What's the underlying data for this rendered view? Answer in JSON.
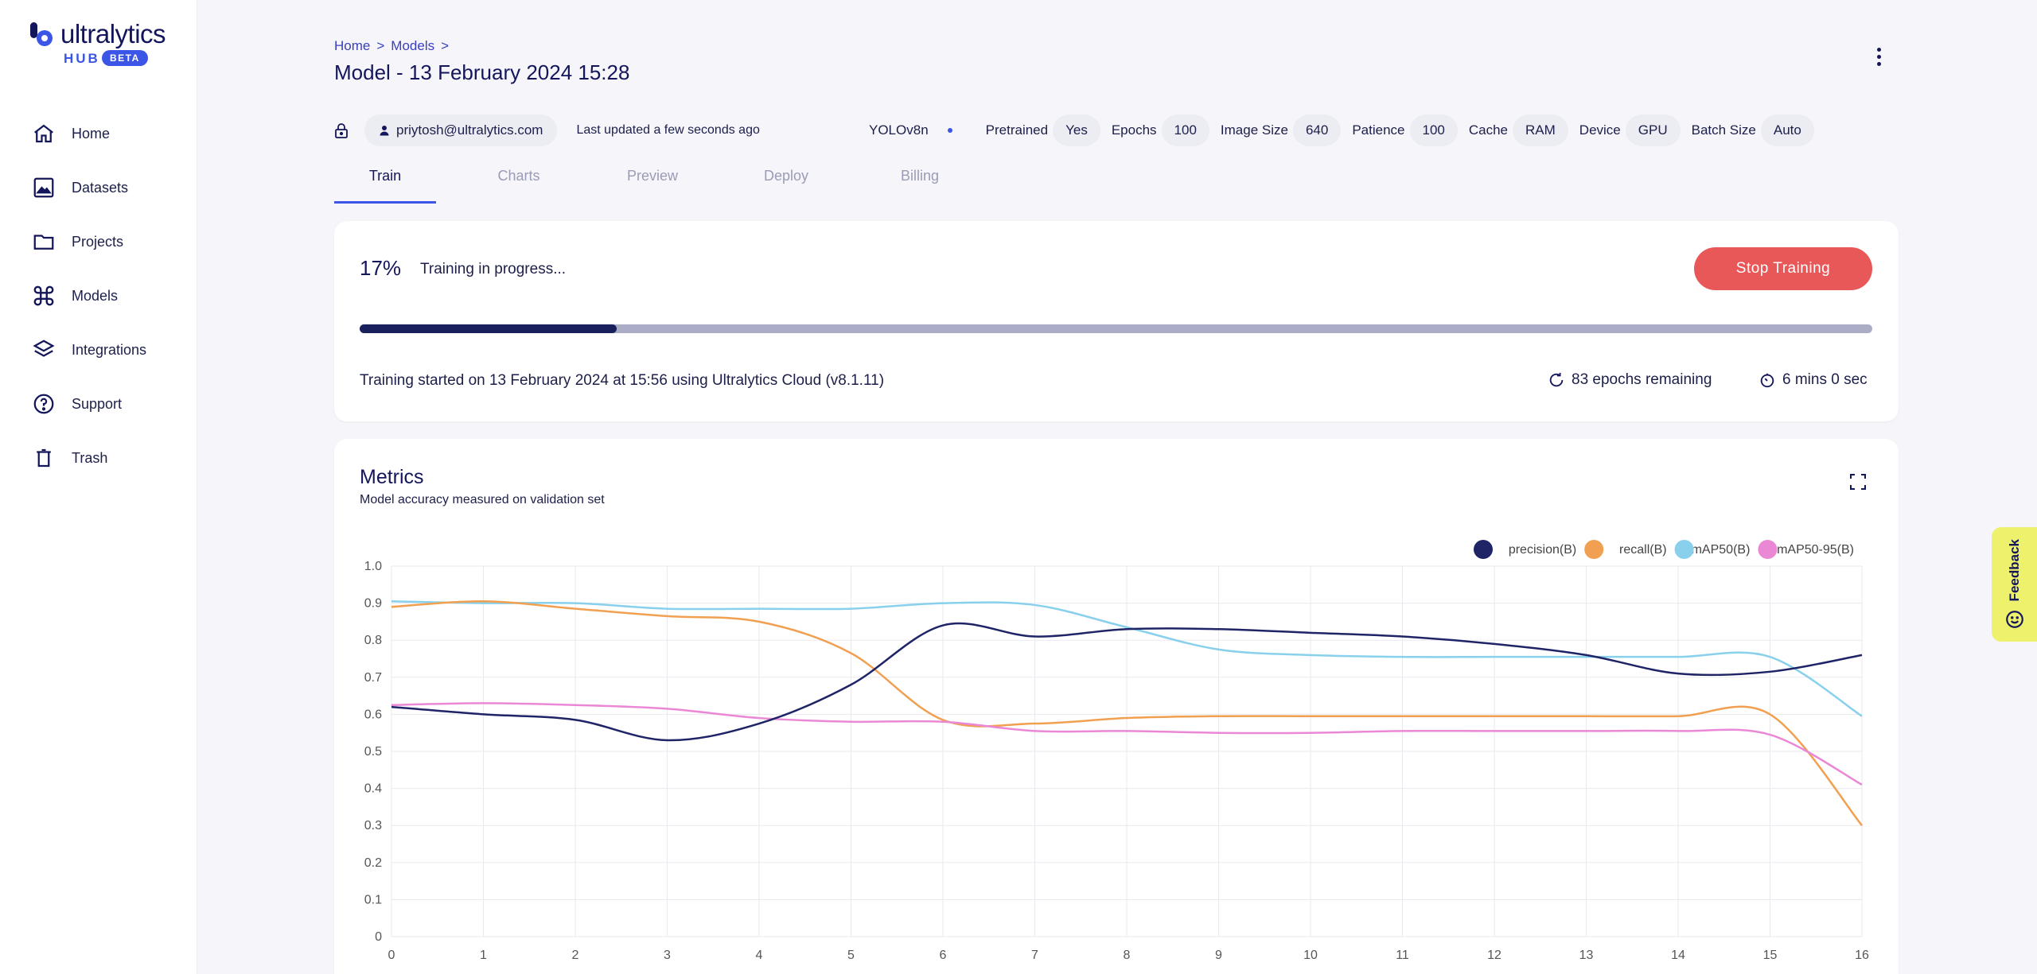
{
  "brand": {
    "name": "ultralytics",
    "hub": "HUB",
    "badge": "BETA"
  },
  "sidebar": {
    "items": [
      {
        "label": "Home",
        "icon": "home-icon"
      },
      {
        "label": "Datasets",
        "icon": "image-icon"
      },
      {
        "label": "Projects",
        "icon": "folder-icon"
      },
      {
        "label": "Models",
        "icon": "command-icon"
      },
      {
        "label": "Integrations",
        "icon": "layers-icon"
      },
      {
        "label": "Support",
        "icon": "help-icon"
      },
      {
        "label": "Trash",
        "icon": "trash-icon"
      }
    ]
  },
  "breadcrumb": {
    "home": "Home",
    "sep": ">",
    "models": "Models"
  },
  "page_title": "Model - 13 February 2024 15:28",
  "info": {
    "email": "priytosh@ultralytics.com",
    "updated": "Last updated a few seconds ago",
    "model": "YOLOv8n",
    "specs": [
      {
        "label": "Pretrained",
        "value": "Yes"
      },
      {
        "label": "Epochs",
        "value": "100"
      },
      {
        "label": "Image Size",
        "value": "640"
      },
      {
        "label": "Patience",
        "value": "100"
      },
      {
        "label": "Cache",
        "value": "RAM"
      },
      {
        "label": "Device",
        "value": "GPU"
      },
      {
        "label": "Batch Size",
        "value": "Auto"
      }
    ]
  },
  "tabs": [
    "Train",
    "Charts",
    "Preview",
    "Deploy",
    "Billing"
  ],
  "training": {
    "percent_label": "17%",
    "progress": 0.17,
    "status": "Training in progress...",
    "stop_label": "Stop Training",
    "started": "Training started on 13 February 2024 at 15:56 using Ultralytics Cloud (v8.1.11)",
    "epochs_remaining": "83 epochs remaining",
    "time_remaining": "6 mins 0 sec"
  },
  "metrics": {
    "title": "Metrics",
    "subtitle": "Model accuracy measured on validation set"
  },
  "feedback_label": "Feedback",
  "colors": {
    "precision": "#1e2466",
    "recall": "#f0a050",
    "map50": "#88d0ec",
    "map5095": "#ea88d6",
    "accent": "#3b55e6",
    "stop": "#e85858"
  },
  "chart_data": {
    "type": "line",
    "x": [
      0,
      1,
      2,
      3,
      4,
      5,
      6,
      7,
      8,
      9,
      10,
      11,
      12,
      13,
      14,
      15,
      16
    ],
    "ylim": [
      0,
      1.0
    ],
    "yticks": [
      "0",
      "0.1",
      "0.2",
      "0.3",
      "0.4",
      "0.5",
      "0.6",
      "0.7",
      "0.8",
      "0.9",
      "1.0"
    ],
    "grid": true,
    "legend": "top-right",
    "series": [
      {
        "name": "precision(B)",
        "color": "#1e2466",
        "values": [
          0.62,
          0.6,
          0.585,
          0.53,
          0.575,
          0.68,
          0.84,
          0.81,
          0.83,
          0.83,
          0.82,
          0.81,
          0.79,
          0.76,
          0.71,
          0.715,
          0.76
        ]
      },
      {
        "name": "recall(B)",
        "color": "#f0a050",
        "values": [
          0.89,
          0.905,
          0.885,
          0.865,
          0.85,
          0.765,
          0.585,
          0.575,
          0.59,
          0.595,
          0.595,
          0.595,
          0.595,
          0.595,
          0.595,
          0.6,
          0.3
        ]
      },
      {
        "name": "mAP50(B)",
        "color": "#88d0ec",
        "values": [
          0.905,
          0.9,
          0.9,
          0.885,
          0.885,
          0.885,
          0.9,
          0.895,
          0.835,
          0.775,
          0.76,
          0.755,
          0.755,
          0.755,
          0.755,
          0.755,
          0.595
        ]
      },
      {
        "name": "mAP50-95(B)",
        "color": "#ea88d6",
        "values": [
          0.625,
          0.63,
          0.625,
          0.615,
          0.59,
          0.58,
          0.58,
          0.555,
          0.555,
          0.55,
          0.55,
          0.555,
          0.555,
          0.555,
          0.555,
          0.545,
          0.41
        ]
      }
    ]
  }
}
